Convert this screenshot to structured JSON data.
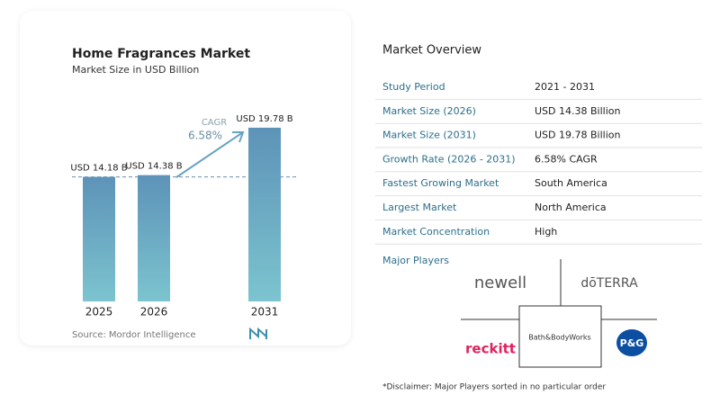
{
  "chart_data": {
    "type": "bar",
    "title": "Home Fragrances Market",
    "subtitle": "Market Size in USD Billion",
    "categories": [
      "2025",
      "2026",
      "2031"
    ],
    "values": [
      14.18,
      14.38,
      19.78
    ],
    "value_labels": [
      "USD 14.18 B",
      "USD 14.38 B",
      "USD 19.78 B"
    ],
    "ylim": [
      0,
      21
    ],
    "color": "#6aa3c2",
    "cagr_label": "CAGR",
    "cagr_value": "6.58%",
    "source": "Source: Mordor Intelligence"
  },
  "overview": {
    "title": "Market Overview",
    "rows": [
      [
        "Study Period",
        "2021 - 2031"
      ],
      [
        "Market Size (2026)",
        "USD 14.38 Billion"
      ],
      [
        "Market Size (2031)",
        "USD 19.78 Billion"
      ],
      [
        "Growth Rate (2026 - 2031)",
        "6.58% CAGR"
      ],
      [
        "Fastest Growing Market",
        "South America"
      ],
      [
        "Largest Market",
        "North America"
      ],
      [
        "Market Concentration",
        "High"
      ]
    ]
  },
  "major_players": {
    "title": "Major Players",
    "logos": [
      "newell",
      "dōTERRA",
      "reckitt",
      "Bath&BodyWorks",
      "P&G"
    ]
  },
  "disclaimer": "*Disclaimer: Major Players sorted in no particular order"
}
